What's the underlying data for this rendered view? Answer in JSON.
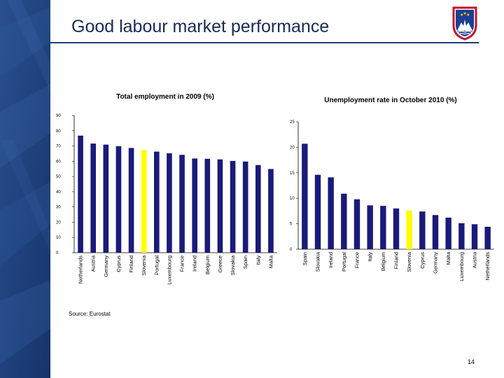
{
  "slide": {
    "title": "Good labour market performance",
    "source": "Source: Eurostat",
    "page_number": "14"
  },
  "colors": {
    "sidebar": "#1f3f7a",
    "bar": "#1a1a7a",
    "highlight": "#ffff00",
    "rule": "#1f3f7a"
  },
  "icons": {
    "emblem": "slovenia-coat-of-arms-icon"
  },
  "chart_data": [
    {
      "type": "bar",
      "title": "Total employment in 2009 (%)",
      "categories": [
        "Netherlands",
        "Austria",
        "Germany",
        "Cyprus",
        "Finland",
        "Slovenia",
        "Portugal",
        "Luxembourg",
        "France",
        "Ireland",
        "Belgium",
        "Greece",
        "Slovakia",
        "Spain",
        "Italy",
        "Malta"
      ],
      "values": [
        76.8,
        71.6,
        70.9,
        69.9,
        68.7,
        67.5,
        66.3,
        65.2,
        64.2,
        61.8,
        61.6,
        61.2,
        60.2,
        59.8,
        57.5,
        54.9
      ],
      "highlight": "Slovenia",
      "ylim": [
        0,
        90
      ],
      "yticks": [
        "0",
        "10",
        "20",
        "30",
        "40",
        "50",
        "60",
        "70",
        "80",
        "90"
      ],
      "xlabel": "",
      "ylabel": "",
      "grid": false
    },
    {
      "type": "bar",
      "title": "Unemployment rate in October 2010 (%)",
      "categories": [
        "Spain",
        "Slovakia",
        "Ireland",
        "Portugal",
        "France",
        "Italy",
        "Belgium",
        "Finland",
        "Slovenia",
        "Cyprus",
        "Germany",
        "Malta",
        "Luxembourg",
        "Austria",
        "Netherlands"
      ],
      "values": [
        20.7,
        14.6,
        14.1,
        10.9,
        9.8,
        8.6,
        8.5,
        8.0,
        7.6,
        7.4,
        6.7,
        6.2,
        5.1,
        4.9,
        4.4
      ],
      "highlight": "Slovenia",
      "ylim": [
        0,
        25
      ],
      "yticks": [
        "0",
        "5",
        "10",
        "15",
        "20",
        "25"
      ],
      "xlabel": "",
      "ylabel": "",
      "grid": false
    }
  ]
}
